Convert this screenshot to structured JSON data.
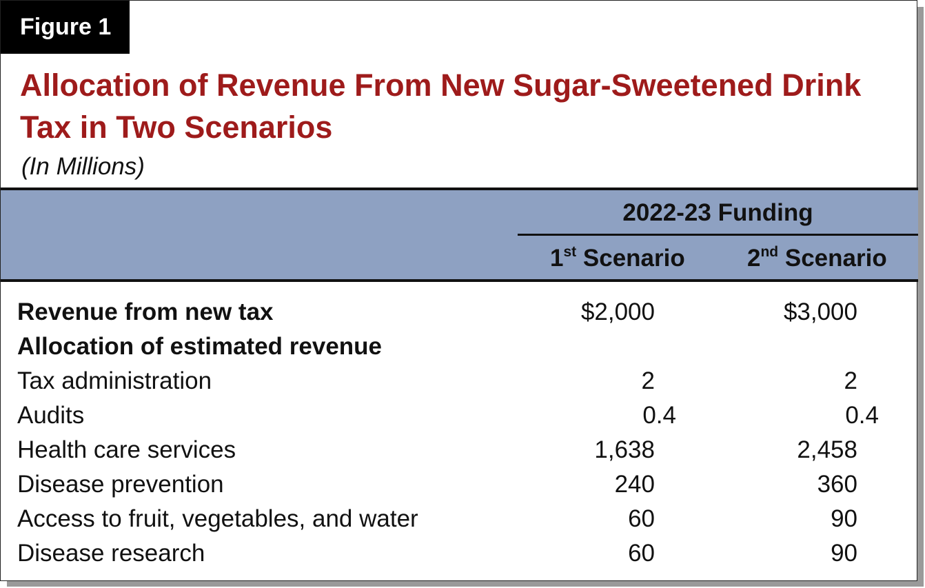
{
  "figure_label": "Figure 1",
  "title": "Allocation of Revenue From New Sugar-Sweetened Drink Tax in Two Scenarios",
  "subtitle": "(In Millions)",
  "table": {
    "group_header": "2022-23 Funding",
    "columns": [
      {
        "base": "1",
        "sup": "st",
        "text": " Scenario"
      },
      {
        "base": "2",
        "sup": "nd",
        "text": " Scenario"
      }
    ],
    "rows": [
      {
        "label": "Revenue from new tax",
        "bold": true,
        "v1": "$2,000",
        "v2": "$3,000"
      },
      {
        "label": "Allocation of estimated revenue",
        "bold": true,
        "v1": "",
        "v2": ""
      },
      {
        "label": "Tax administration",
        "bold": false,
        "v1": "2",
        "v2": "2"
      },
      {
        "label": "Audits",
        "bold": false,
        "v1": "0.4",
        "v2": "0.4"
      },
      {
        "label": "Health care services",
        "bold": false,
        "v1": "1,638",
        "v2": "2,458"
      },
      {
        "label": "Disease prevention",
        "bold": false,
        "v1": "240",
        "v2": "360"
      },
      {
        "label": "Access to fruit, vegetables, and water",
        "bold": false,
        "v1": "60",
        "v2": "90"
      },
      {
        "label": "Disease research",
        "bold": false,
        "v1": "60",
        "v2": "90"
      }
    ]
  }
}
